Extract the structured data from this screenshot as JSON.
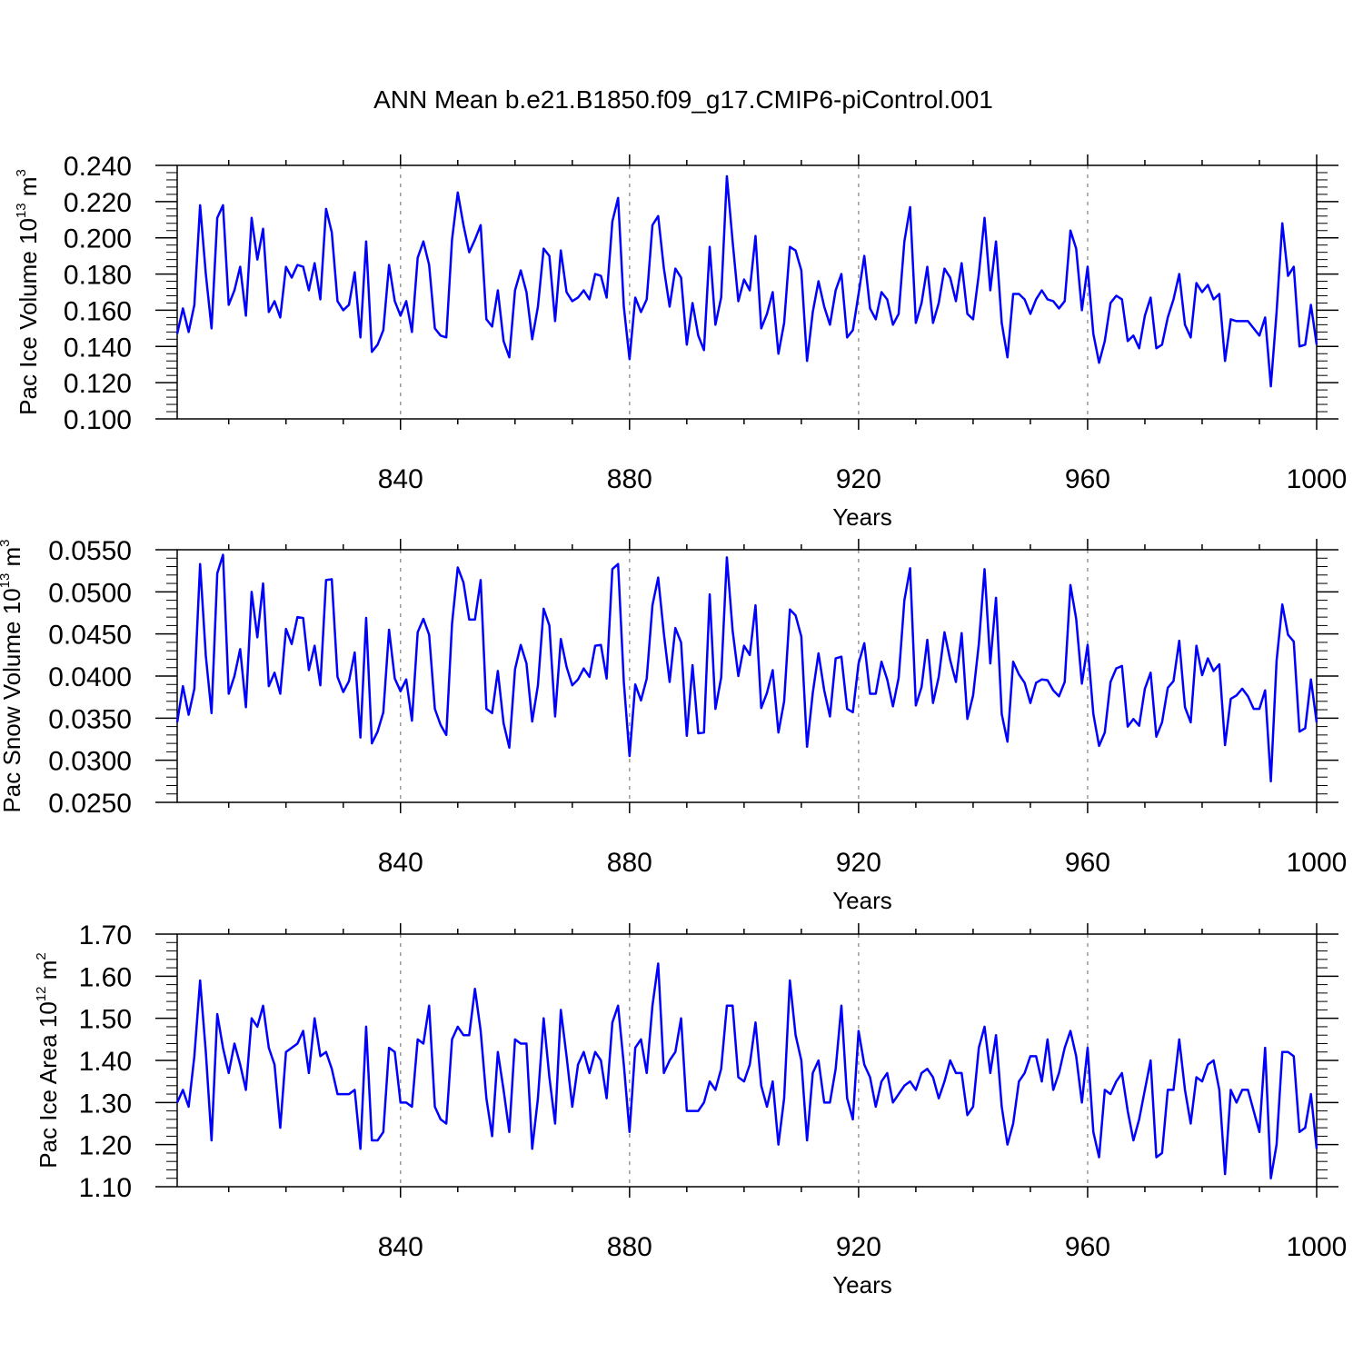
{
  "title": "ANN Mean b.e21.B1850.f09_g17.CMIP6-piControl.001",
  "line_color": "#0000ff",
  "chart_data": [
    {
      "type": "line",
      "ylabel": "Pac Ice Volume 10",
      "ylabel_exp": "13",
      "ylabel_unit": "m",
      "ylabel_unit_exp": "3",
      "xlabel": "Years",
      "xlim": [
        801,
        1000
      ],
      "ylim": [
        0.1,
        0.24
      ],
      "xticks": [
        840,
        880,
        920,
        960,
        1000
      ],
      "yticks": [
        "0.100",
        "0.120",
        "0.140",
        "0.160",
        "0.180",
        "0.200",
        "0.220",
        "0.240"
      ],
      "x_start": 801,
      "values": [
        0.147,
        0.161,
        0.148,
        0.163,
        0.218,
        0.18,
        0.15,
        0.211,
        0.218,
        0.163,
        0.171,
        0.184,
        0.157,
        0.211,
        0.188,
        0.205,
        0.159,
        0.165,
        0.156,
        0.184,
        0.178,
        0.185,
        0.184,
        0.171,
        0.186,
        0.166,
        0.216,
        0.203,
        0.165,
        0.16,
        0.163,
        0.181,
        0.145,
        0.198,
        0.137,
        0.141,
        0.149,
        0.185,
        0.165,
        0.157,
        0.165,
        0.148,
        0.189,
        0.198,
        0.185,
        0.15,
        0.146,
        0.145,
        0.199,
        0.225,
        0.207,
        0.192,
        0.199,
        0.207,
        0.155,
        0.151,
        0.171,
        0.143,
        0.134,
        0.171,
        0.182,
        0.17,
        0.144,
        0.162,
        0.194,
        0.19,
        0.154,
        0.193,
        0.17,
        0.165,
        0.167,
        0.171,
        0.166,
        0.18,
        0.179,
        0.167,
        0.209,
        0.222,
        0.162,
        0.133,
        0.167,
        0.159,
        0.166,
        0.207,
        0.212,
        0.183,
        0.162,
        0.183,
        0.178,
        0.141,
        0.164,
        0.146,
        0.138,
        0.195,
        0.152,
        0.167,
        0.234,
        0.198,
        0.165,
        0.177,
        0.171,
        0.201,
        0.15,
        0.158,
        0.17,
        0.136,
        0.153,
        0.195,
        0.193,
        0.182,
        0.132,
        0.159,
        0.176,
        0.162,
        0.152,
        0.171,
        0.18,
        0.145,
        0.149,
        0.169,
        0.19,
        0.161,
        0.155,
        0.17,
        0.166,
        0.152,
        0.158,
        0.198,
        0.217,
        0.153,
        0.164,
        0.184,
        0.153,
        0.164,
        0.183,
        0.178,
        0.165,
        0.186,
        0.158,
        0.155,
        0.18,
        0.211,
        0.171,
        0.198,
        0.153,
        0.134,
        0.169,
        0.169,
        0.166,
        0.158,
        0.166,
        0.171,
        0.166,
        0.165,
        0.161,
        0.165,
        0.204,
        0.194,
        0.16,
        0.184,
        0.147,
        0.131,
        0.143,
        0.164,
        0.168,
        0.166,
        0.143,
        0.146,
        0.139,
        0.157,
        0.167,
        0.139,
        0.141,
        0.156,
        0.166,
        0.18,
        0.152,
        0.145,
        0.175,
        0.17,
        0.174,
        0.166,
        0.169,
        0.132,
        0.155,
        0.154,
        0.154,
        0.154,
        0.15,
        0.146,
        0.156,
        0.118,
        0.159,
        0.208,
        0.179,
        0.184,
        0.14,
        0.141,
        0.163,
        0.141
      ]
    },
    {
      "type": "line",
      "ylabel": "Pac Snow Volume 10",
      "ylabel_exp": "13",
      "ylabel_unit": "m",
      "ylabel_unit_exp": "3",
      "xlabel": "Years",
      "xlim": [
        801,
        1000
      ],
      "ylim": [
        0.025,
        0.055
      ],
      "xticks": [
        840,
        880,
        920,
        960,
        1000
      ],
      "yticks": [
        "0.0250",
        "0.0300",
        "0.0350",
        "0.0400",
        "0.0450",
        "0.0500",
        "0.0550"
      ],
      "x_start": 801,
      "values": [
        0.0345,
        0.0388,
        0.0354,
        0.0385,
        0.0533,
        0.0424,
        0.0356,
        0.0522,
        0.0544,
        0.0379,
        0.04,
        0.0432,
        0.0363,
        0.05,
        0.0446,
        0.051,
        0.0388,
        0.0404,
        0.0379,
        0.0456,
        0.0438,
        0.047,
        0.0469,
        0.0407,
        0.0436,
        0.0389,
        0.0514,
        0.0515,
        0.0399,
        0.0381,
        0.0394,
        0.0428,
        0.0327,
        0.0469,
        0.032,
        0.0334,
        0.0357,
        0.0455,
        0.0397,
        0.0382,
        0.0396,
        0.0347,
        0.0452,
        0.0468,
        0.0449,
        0.0361,
        0.0342,
        0.033,
        0.0462,
        0.0529,
        0.0511,
        0.0467,
        0.0467,
        0.0514,
        0.0361,
        0.0356,
        0.0406,
        0.0344,
        0.0315,
        0.0408,
        0.0437,
        0.0415,
        0.0346,
        0.0389,
        0.048,
        0.046,
        0.0352,
        0.0444,
        0.0411,
        0.0389,
        0.0396,
        0.0409,
        0.0399,
        0.0436,
        0.0437,
        0.0397,
        0.0527,
        0.0533,
        0.0393,
        0.0305,
        0.039,
        0.0371,
        0.0397,
        0.0484,
        0.0517,
        0.045,
        0.0393,
        0.0457,
        0.044,
        0.0329,
        0.0413,
        0.0332,
        0.0333,
        0.0497,
        0.0361,
        0.0398,
        0.0541,
        0.0454,
        0.04,
        0.0436,
        0.0425,
        0.0484,
        0.0362,
        0.038,
        0.0407,
        0.0333,
        0.037,
        0.0479,
        0.0472,
        0.0447,
        0.0316,
        0.038,
        0.0427,
        0.0383,
        0.0352,
        0.0421,
        0.0423,
        0.0361,
        0.0357,
        0.0415,
        0.0439,
        0.0379,
        0.0379,
        0.0417,
        0.0396,
        0.0364,
        0.0398,
        0.049,
        0.0528,
        0.0365,
        0.0387,
        0.0443,
        0.0368,
        0.0399,
        0.0452,
        0.0419,
        0.0393,
        0.0451,
        0.0349,
        0.0377,
        0.0438,
        0.0527,
        0.0415,
        0.0493,
        0.0355,
        0.0322,
        0.0417,
        0.0402,
        0.0392,
        0.0368,
        0.0392,
        0.0396,
        0.0395,
        0.0383,
        0.0376,
        0.0393,
        0.0508,
        0.0468,
        0.0391,
        0.0437,
        0.0355,
        0.0317,
        0.0333,
        0.0393,
        0.0409,
        0.0412,
        0.034,
        0.0349,
        0.0341,
        0.0385,
        0.0404,
        0.0328,
        0.0345,
        0.0386,
        0.0394,
        0.0442,
        0.0363,
        0.0345,
        0.0436,
        0.0401,
        0.0421,
        0.0406,
        0.0414,
        0.0318,
        0.0373,
        0.0377,
        0.0385,
        0.0376,
        0.0361,
        0.0361,
        0.0383,
        0.0275,
        0.0418,
        0.0485,
        0.0449,
        0.0441,
        0.0334,
        0.0338,
        0.0396,
        0.0345
      ]
    },
    {
      "type": "line",
      "ylabel": "Pac Ice Area 10",
      "ylabel_exp": "12",
      "ylabel_unit": "m",
      "ylabel_unit_exp": "2",
      "xlabel": "Years",
      "xlim": [
        801,
        1000
      ],
      "ylim": [
        1.1,
        1.7
      ],
      "xticks": [
        840,
        880,
        920,
        960,
        1000
      ],
      "yticks": [
        "1.10",
        "1.20",
        "1.30",
        "1.40",
        "1.50",
        "1.60",
        "1.70"
      ],
      "x_start": 801,
      "values": [
        1.3,
        1.33,
        1.29,
        1.41,
        1.59,
        1.42,
        1.21,
        1.51,
        1.43,
        1.37,
        1.44,
        1.39,
        1.33,
        1.5,
        1.48,
        1.53,
        1.43,
        1.39,
        1.24,
        1.42,
        1.43,
        1.44,
        1.47,
        1.37,
        1.5,
        1.41,
        1.42,
        1.38,
        1.32,
        1.32,
        1.32,
        1.33,
        1.19,
        1.48,
        1.21,
        1.21,
        1.23,
        1.43,
        1.42,
        1.3,
        1.3,
        1.29,
        1.45,
        1.44,
        1.53,
        1.29,
        1.26,
        1.25,
        1.45,
        1.48,
        1.46,
        1.46,
        1.57,
        1.47,
        1.31,
        1.22,
        1.42,
        1.33,
        1.23,
        1.45,
        1.44,
        1.44,
        1.19,
        1.31,
        1.5,
        1.36,
        1.25,
        1.52,
        1.41,
        1.29,
        1.39,
        1.42,
        1.37,
        1.42,
        1.4,
        1.31,
        1.49,
        1.53,
        1.39,
        1.23,
        1.43,
        1.45,
        1.37,
        1.53,
        1.63,
        1.37,
        1.4,
        1.42,
        1.5,
        1.28,
        1.28,
        1.28,
        1.3,
        1.35,
        1.33,
        1.38,
        1.53,
        1.53,
        1.36,
        1.35,
        1.39,
        1.49,
        1.34,
        1.29,
        1.35,
        1.2,
        1.31,
        1.59,
        1.46,
        1.4,
        1.21,
        1.37,
        1.4,
        1.3,
        1.3,
        1.38,
        1.53,
        1.31,
        1.26,
        1.47,
        1.39,
        1.36,
        1.29,
        1.35,
        1.37,
        1.3,
        1.32,
        1.34,
        1.35,
        1.33,
        1.37,
        1.38,
        1.36,
        1.31,
        1.35,
        1.4,
        1.37,
        1.37,
        1.27,
        1.29,
        1.43,
        1.48,
        1.37,
        1.46,
        1.29,
        1.2,
        1.25,
        1.35,
        1.37,
        1.41,
        1.41,
        1.35,
        1.45,
        1.33,
        1.37,
        1.43,
        1.47,
        1.41,
        1.3,
        1.43,
        1.23,
        1.17,
        1.33,
        1.32,
        1.35,
        1.37,
        1.28,
        1.21,
        1.26,
        1.33,
        1.4,
        1.17,
        1.18,
        1.33,
        1.33,
        1.45,
        1.33,
        1.25,
        1.36,
        1.35,
        1.39,
        1.4,
        1.33,
        1.13,
        1.33,
        1.3,
        1.33,
        1.33,
        1.28,
        1.23,
        1.43,
        1.12,
        1.2,
        1.42,
        1.42,
        1.41,
        1.23,
        1.24,
        1.32,
        1.19
      ]
    }
  ]
}
